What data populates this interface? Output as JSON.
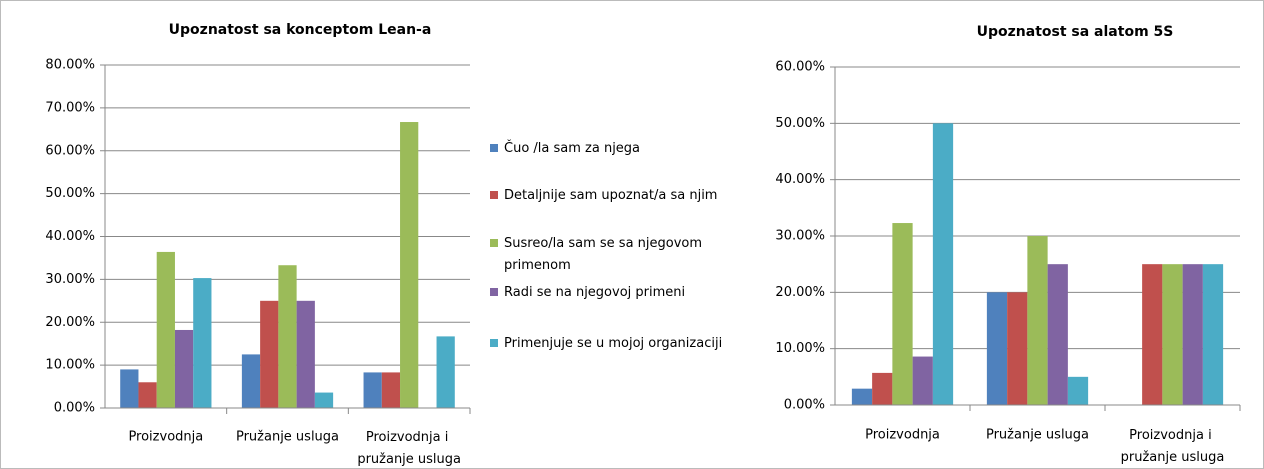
{
  "chart_data": [
    {
      "type": "bar",
      "title": "Upoznatost sa konceptom Lean-a",
      "categories": [
        "Proizvodnja",
        "Pružanje usluga",
        "Proizvodnja i pružanje usluga"
      ],
      "series": [
        {
          "name": "Čuo /la sam za njega",
          "color": "#4f81bd",
          "values": [
            9,
            12.5,
            8.3
          ]
        },
        {
          "name": "Detaljnije sam upoznat/a sa njim",
          "color": "#c0504d",
          "values": [
            6,
            25,
            8.3
          ]
        },
        {
          "name": "Susreo/la sam se sa njegovom primenom",
          "color": "#9bbb59",
          "values": [
            36.4,
            33.3,
            66.7
          ]
        },
        {
          "name": "Radi se na njegovoj primeni",
          "color": "#8064a2",
          "values": [
            18.2,
            25,
            0
          ]
        },
        {
          "name": "Primenjuje se u mojoj organizaciji",
          "color": "#4bacc6",
          "values": [
            30.3,
            3.6,
            16.7
          ]
        }
      ],
      "ylim": [
        0,
        80
      ],
      "yticks": [
        {
          "value": 0,
          "label": "0.00%"
        },
        {
          "value": 10,
          "label": "10.00%"
        },
        {
          "value": 20,
          "label": "20.00%"
        },
        {
          "value": 30,
          "label": "30.00%"
        },
        {
          "value": 40,
          "label": "40.00%"
        },
        {
          "value": 50,
          "label": "50.00%"
        },
        {
          "value": 60,
          "label": "60.00%"
        },
        {
          "value": 70,
          "label": "70.00%"
        },
        {
          "value": 80,
          "label": "80.00%"
        }
      ],
      "grid": true
    },
    {
      "type": "bar",
      "title": "Upoznatost sa alatom 5S",
      "categories": [
        "Proizvodnja",
        "Pružanje usluga",
        "Proizvodnja i pružanje usluga"
      ],
      "series": [
        {
          "color": "#4f81bd",
          "values": [
            2.9,
            20,
            0
          ]
        },
        {
          "color": "#c0504d",
          "values": [
            5.7,
            20,
            25
          ]
        },
        {
          "color": "#9bbb59",
          "values": [
            32.3,
            30,
            25
          ]
        },
        {
          "color": "#8064a2",
          "values": [
            8.6,
            25,
            25
          ]
        },
        {
          "color": "#4bacc6",
          "values": [
            50,
            5,
            25
          ]
        }
      ],
      "ylim": [
        0,
        60
      ],
      "yticks": [
        {
          "value": 0,
          "label": "0.00%"
        },
        {
          "value": 10,
          "label": "10.00%"
        },
        {
          "value": 20,
          "label": "20.00%"
        },
        {
          "value": 30,
          "label": "30.00%"
        },
        {
          "value": 40,
          "label": "40.00%"
        },
        {
          "value": 50,
          "label": "50.00%"
        },
        {
          "value": 60,
          "label": "60.00%"
        }
      ],
      "grid": true
    }
  ]
}
